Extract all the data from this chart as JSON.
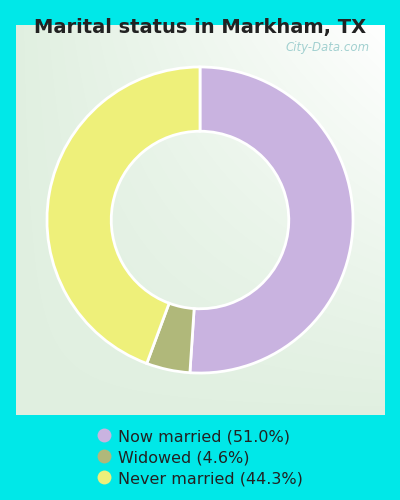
{
  "title": "Marital status in Markham, TX",
  "slices": [
    51.0,
    4.6,
    44.3
  ],
  "labels": [
    "Now married (51.0%)",
    "Widowed (4.6%)",
    "Never married (44.3%)"
  ],
  "colors": [
    "#c9b3e0",
    "#b0b87a",
    "#eef07a"
  ],
  "legend_colors": [
    "#c9b3e0",
    "#b0b87a",
    "#eef07a"
  ],
  "background_outer": "#00e8e8",
  "title_fontsize": 14,
  "legend_fontsize": 11.5,
  "donut_width": 0.42,
  "start_angle": 90,
  "watermark": "City-Data.com",
  "title_color": "#222222"
}
